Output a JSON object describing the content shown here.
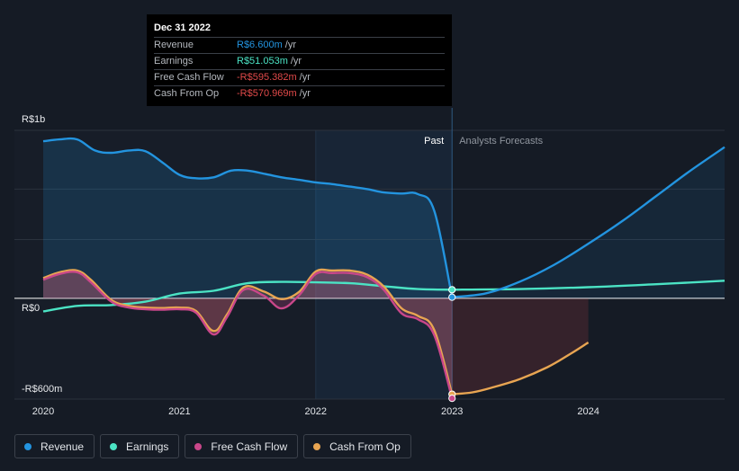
{
  "tooltip": {
    "date": "Dec 31 2022",
    "rows": [
      {
        "name": "Revenue",
        "value": "R$6.600m",
        "unit": "/yr",
        "color": "#2394df"
      },
      {
        "name": "Earnings",
        "value": "R$51.053m",
        "unit": "/yr",
        "color": "#4be3c4"
      },
      {
        "name": "Free Cash Flow",
        "value": "-R$595.382m",
        "unit": "/yr",
        "color": "#e14a4a"
      },
      {
        "name": "Cash From Op",
        "value": "-R$570.969m",
        "unit": "/yr",
        "color": "#e14a4a"
      }
    ]
  },
  "legend": [
    {
      "label": "Revenue",
      "color": "#2394df"
    },
    {
      "label": "Earnings",
      "color": "#4be3c4"
    },
    {
      "label": "Free Cash Flow",
      "color": "#c9478a"
    },
    {
      "label": "Cash From Op",
      "color": "#e8a552"
    }
  ],
  "chart_data": {
    "type": "line",
    "title": "",
    "units": "R$ millions per year",
    "ylim": [
      -600,
      1000
    ],
    "xlim": [
      2020.0,
      2025.0
    ],
    "y_tick_labels": [
      {
        "value": 1000,
        "label": "R$1b"
      },
      {
        "value": 0,
        "label": "R$0"
      },
      {
        "value": -600,
        "label": "-R$600m"
      }
    ],
    "x_tick_labels": [
      {
        "value": 2020,
        "label": "2020"
      },
      {
        "value": 2021,
        "label": "2021"
      },
      {
        "value": 2022,
        "label": "2022"
      },
      {
        "value": 2023,
        "label": "2023"
      },
      {
        "value": 2024,
        "label": "2024"
      }
    ],
    "divider_x": 2023.0,
    "highlight_range": [
      2022.0,
      2023.0
    ],
    "past_label": "Past",
    "forecast_label": "Analysts Forecasts",
    "series": [
      {
        "name": "Revenue",
        "color": "#2394df",
        "area": true,
        "past": [
          [
            2020.0,
            935
          ],
          [
            2020.12,
            946
          ],
          [
            2020.25,
            946
          ],
          [
            2020.38,
            880
          ],
          [
            2020.5,
            866
          ],
          [
            2020.63,
            880
          ],
          [
            2020.75,
            876
          ],
          [
            2020.88,
            806
          ],
          [
            2021.0,
            735
          ],
          [
            2021.12,
            715
          ],
          [
            2021.25,
            720
          ],
          [
            2021.38,
            760
          ],
          [
            2021.5,
            760
          ],
          [
            2021.63,
            740
          ],
          [
            2021.75,
            720
          ],
          [
            2021.88,
            705
          ],
          [
            2022.0,
            690
          ],
          [
            2022.12,
            680
          ],
          [
            2022.25,
            665
          ],
          [
            2022.38,
            650
          ],
          [
            2022.5,
            630
          ],
          [
            2022.63,
            624
          ],
          [
            2022.75,
            620
          ],
          [
            2022.87,
            520
          ],
          [
            2023.0,
            6.6
          ]
        ],
        "forecast": [
          [
            2023.0,
            6.6
          ],
          [
            2023.25,
            30
          ],
          [
            2023.5,
            100
          ],
          [
            2023.75,
            200
          ],
          [
            2024.0,
            325
          ],
          [
            2024.25,
            460
          ],
          [
            2024.5,
            610
          ],
          [
            2024.75,
            760
          ],
          [
            2025.0,
            900
          ]
        ]
      },
      {
        "name": "Earnings",
        "color": "#4be3c4",
        "area": false,
        "past": [
          [
            2020.0,
            -78
          ],
          [
            2020.25,
            -45
          ],
          [
            2020.5,
            -40
          ],
          [
            2020.75,
            -20
          ],
          [
            2021.0,
            28
          ],
          [
            2021.25,
            45
          ],
          [
            2021.5,
            90
          ],
          [
            2021.75,
            98
          ],
          [
            2022.0,
            95
          ],
          [
            2022.25,
            90
          ],
          [
            2022.5,
            72
          ],
          [
            2022.75,
            55
          ],
          [
            2023.0,
            51.05
          ]
        ],
        "forecast": [
          [
            2023.0,
            51.05
          ],
          [
            2023.5,
            55
          ],
          [
            2024.0,
            66
          ],
          [
            2024.5,
            84
          ],
          [
            2025.0,
            105
          ]
        ]
      },
      {
        "name": "Free Cash Flow",
        "color": "#c9478a",
        "area": true,
        "past": [
          [
            2020.0,
            110
          ],
          [
            2020.12,
            145
          ],
          [
            2020.25,
            155
          ],
          [
            2020.35,
            95
          ],
          [
            2020.5,
            -20
          ],
          [
            2020.63,
            -55
          ],
          [
            2020.75,
            -65
          ],
          [
            2020.88,
            -68
          ],
          [
            2021.0,
            -65
          ],
          [
            2021.12,
            -85
          ],
          [
            2021.25,
            -215
          ],
          [
            2021.35,
            -110
          ],
          [
            2021.47,
            50
          ],
          [
            2021.62,
            15
          ],
          [
            2021.75,
            -60
          ],
          [
            2021.88,
            20
          ],
          [
            2022.0,
            145
          ],
          [
            2022.12,
            150
          ],
          [
            2022.25,
            150
          ],
          [
            2022.38,
            125
          ],
          [
            2022.5,
            50
          ],
          [
            2022.63,
            -90
          ],
          [
            2022.75,
            -125
          ],
          [
            2022.87,
            -220
          ],
          [
            2023.0,
            -595.4
          ]
        ],
        "forecast": []
      },
      {
        "name": "Cash From Op",
        "color": "#e8a552",
        "area": true,
        "past": [
          [
            2020.0,
            120
          ],
          [
            2020.12,
            155
          ],
          [
            2020.25,
            165
          ],
          [
            2020.35,
            110
          ],
          [
            2020.5,
            -10
          ],
          [
            2020.63,
            -45
          ],
          [
            2020.75,
            -55
          ],
          [
            2020.88,
            -58
          ],
          [
            2021.0,
            -55
          ],
          [
            2021.12,
            -75
          ],
          [
            2021.25,
            -195
          ],
          [
            2021.35,
            -95
          ],
          [
            2021.47,
            65
          ],
          [
            2021.62,
            40
          ],
          [
            2021.75,
            -5
          ],
          [
            2021.88,
            40
          ],
          [
            2022.0,
            160
          ],
          [
            2022.12,
            165
          ],
          [
            2022.25,
            165
          ],
          [
            2022.38,
            140
          ],
          [
            2022.5,
            70
          ],
          [
            2022.63,
            -60
          ],
          [
            2022.75,
            -105
          ],
          [
            2022.87,
            -190
          ],
          [
            2023.0,
            -571
          ]
        ],
        "forecast": [
          [
            2023.0,
            -571
          ],
          [
            2023.15,
            -560
          ],
          [
            2023.3,
            -530
          ],
          [
            2023.5,
            -480
          ],
          [
            2023.7,
            -410
          ],
          [
            2023.85,
            -340
          ],
          [
            2024.0,
            -263
          ]
        ]
      }
    ]
  }
}
